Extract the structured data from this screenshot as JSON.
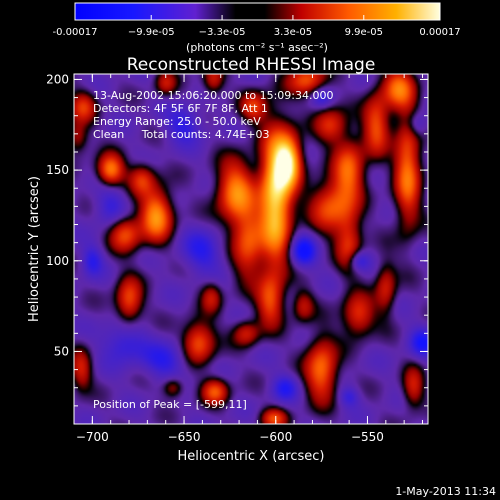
{
  "chart_data": {
    "type": "heatmap",
    "title": "Reconstructed RHESSI Image",
    "xlabel": "Heliocentric X (arcsec)",
    "ylabel": "Heliocentric Y (arcsec)",
    "xlim": [
      -710,
      -517
    ],
    "ylim": [
      10,
      203
    ],
    "xticks": [
      -700,
      -650,
      -600,
      -550
    ],
    "yticks": [
      50,
      100,
      150,
      200
    ],
    "grid": false,
    "colorbar": {
      "min": -0.00017,
      "max": 0.00017,
      "tick_values": [
        -0.00017,
        -9.9e-05,
        -3.3e-05,
        3.3e-05,
        9.9e-05,
        0.00017
      ],
      "tick_labels": [
        "-0.00017",
        "−9.9e-05",
        "−3.3e-05",
        "3.3e-05",
        "9.9e-05",
        "0.00017"
      ],
      "unit_text": "(photons cm⁻² s⁻¹ asec⁻²)",
      "position": "top"
    },
    "annotations": [
      "13-Aug-2002 15:06:20.000 to 15:09:34.000",
      "Detectors: 4F 5F 6F 7F 8F, Att 1",
      "Energy Range: 25.0 - 50.0 keV",
      "Clean     Total counts: 4.74E+03"
    ],
    "peak_label": "Position of Peak = [-599,11]",
    "peak": {
      "x": -599,
      "y": 11
    },
    "timestamp": "1-May-2013 11:34",
    "sources": [
      {
        "x": -600,
        "y": 135,
        "sx": 6,
        "sy": 26,
        "v": 1.0
      },
      {
        "x": -593,
        "y": 155,
        "sx": 5,
        "sy": 10,
        "v": 0.9
      },
      {
        "x": -622,
        "y": 138,
        "sx": 7,
        "sy": 12,
        "v": 0.7
      },
      {
        "x": -615,
        "y": 110,
        "sx": 6,
        "sy": 14,
        "v": 0.55
      },
      {
        "x": -570,
        "y": 130,
        "sx": 8,
        "sy": 10,
        "v": 0.55
      },
      {
        "x": -560,
        "y": 150,
        "sx": 6,
        "sy": 12,
        "v": 0.6
      },
      {
        "x": -545,
        "y": 175,
        "sx": 5,
        "sy": 12,
        "v": 0.55
      },
      {
        "x": -560,
        "y": 110,
        "sx": 5,
        "sy": 12,
        "v": 0.45
      },
      {
        "x": -528,
        "y": 150,
        "sx": 5,
        "sy": 22,
        "v": 0.65
      },
      {
        "x": -533,
        "y": 195,
        "sx": 6,
        "sy": 8,
        "v": 0.6
      },
      {
        "x": -583,
        "y": 200,
        "sx": 7,
        "sy": 6,
        "v": 0.55
      },
      {
        "x": -570,
        "y": 175,
        "sx": 6,
        "sy": 7,
        "v": 0.45
      },
      {
        "x": -612,
        "y": 185,
        "sx": 5,
        "sy": 6,
        "v": 0.45
      },
      {
        "x": -634,
        "y": 200,
        "sx": 4,
        "sy": 6,
        "v": 0.4
      },
      {
        "x": -660,
        "y": 198,
        "sx": 4,
        "sy": 5,
        "v": 0.35
      },
      {
        "x": -705,
        "y": 185,
        "sx": 5,
        "sy": 6,
        "v": 0.45
      },
      {
        "x": -708,
        "y": 168,
        "sx": 4,
        "sy": 6,
        "v": 0.35
      },
      {
        "x": -690,
        "y": 150,
        "sx": 5,
        "sy": 6,
        "v": 0.7
      },
      {
        "x": -673,
        "y": 145,
        "sx": 5,
        "sy": 6,
        "v": 0.45
      },
      {
        "x": -665,
        "y": 125,
        "sx": 6,
        "sy": 10,
        "v": 0.75
      },
      {
        "x": -682,
        "y": 115,
        "sx": 6,
        "sy": 7,
        "v": 0.55
      },
      {
        "x": -680,
        "y": 78,
        "sx": 5,
        "sy": 9,
        "v": 0.55
      },
      {
        "x": -642,
        "y": 55,
        "sx": 6,
        "sy": 8,
        "v": 0.6
      },
      {
        "x": -635,
        "y": 80,
        "sx": 4,
        "sy": 6,
        "v": 0.35
      },
      {
        "x": -616,
        "y": 60,
        "sx": 5,
        "sy": 5,
        "v": 0.4
      },
      {
        "x": -603,
        "y": 78,
        "sx": 5,
        "sy": 10,
        "v": 0.5
      },
      {
        "x": -585,
        "y": 75,
        "sx": 4,
        "sy": 6,
        "v": 0.35
      },
      {
        "x": -575,
        "y": 40,
        "sx": 6,
        "sy": 12,
        "v": 0.65
      },
      {
        "x": -555,
        "y": 70,
        "sx": 6,
        "sy": 8,
        "v": 0.5
      },
      {
        "x": -540,
        "y": 85,
        "sx": 4,
        "sy": 10,
        "v": 0.4
      },
      {
        "x": -525,
        "y": 30,
        "sx": 4,
        "sy": 8,
        "v": 0.4
      },
      {
        "x": -706,
        "y": 40,
        "sx": 4,
        "sy": 8,
        "v": 0.4
      },
      {
        "x": -656,
        "y": 30,
        "sx": 4,
        "sy": 4,
        "v": 0.35
      },
      {
        "x": -633,
        "y": 28,
        "sx": 5,
        "sy": 5,
        "v": 0.55
      },
      {
        "x": -601,
        "y": 13,
        "sx": 5,
        "sy": 4,
        "v": 0.5
      },
      {
        "x": -690,
        "y": 130,
        "sx": 6,
        "sy": 8,
        "v": -0.25
      },
      {
        "x": -683,
        "y": 55,
        "sx": 8,
        "sy": 8,
        "v": -0.3
      },
      {
        "x": -660,
        "y": 45,
        "sx": 9,
        "sy": 7,
        "v": -0.3
      },
      {
        "x": -640,
        "y": 105,
        "sx": 8,
        "sy": 8,
        "v": -0.3
      },
      {
        "x": -585,
        "y": 105,
        "sx": 5,
        "sy": 6,
        "v": -0.45
      },
      {
        "x": -555,
        "y": 100,
        "sx": 4,
        "sy": 4,
        "v": -0.35
      },
      {
        "x": -520,
        "y": 55,
        "sx": 5,
        "sy": 6,
        "v": -0.35
      },
      {
        "x": -523,
        "y": 175,
        "sx": 4,
        "sy": 5,
        "v": -0.3
      },
      {
        "x": -595,
        "y": 30,
        "sx": 5,
        "sy": 5,
        "v": -0.3
      },
      {
        "x": -650,
        "y": 175,
        "sx": 7,
        "sy": 7,
        "v": -0.3
      },
      {
        "x": -560,
        "y": 25,
        "sx": 4,
        "sy": 4,
        "v": -0.25
      },
      {
        "x": -700,
        "y": 100,
        "sx": 4,
        "sy": 6,
        "v": -0.3
      },
      {
        "x": -575,
        "y": 190,
        "sx": 4,
        "sy": 4,
        "v": -0.25
      }
    ]
  }
}
